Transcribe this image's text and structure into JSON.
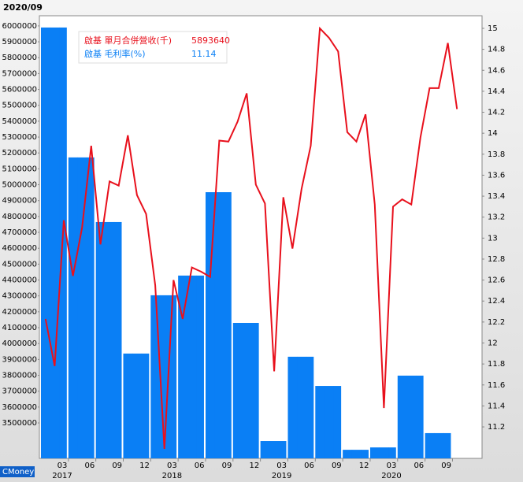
{
  "chart_data": {
    "type": "bar+line",
    "title": "2020/09",
    "footer": "CMoney",
    "categories": [
      null,
      null,
      "03",
      null,
      null,
      "06",
      null,
      null,
      "09",
      null,
      null,
      "12",
      null,
      null,
      "03",
      null,
      null,
      "06",
      null,
      null,
      "09",
      null,
      null,
      "12",
      null,
      null,
      "03",
      null,
      null,
      "06",
      null,
      null,
      "09",
      null,
      null,
      "12",
      null,
      null,
      "03",
      null,
      null,
      "06",
      null,
      null,
      "09",
      null
    ],
    "years": [
      "2017",
      "2018",
      "2019",
      "2020"
    ],
    "series": [
      {
        "name": "啟基 單月合併營收(千)",
        "legend_value": 5893640,
        "legend_color": "#e8101c",
        "color": "#0a7ff5",
        "kind": "bar",
        "values": [
          5990000,
          5990000,
          5990000,
          5172000,
          5172000,
          5172000,
          4765000,
          4765000,
          4765000,
          3937000,
          3937000,
          3937000,
          4304000,
          4304000,
          4304000,
          4428000,
          4428000,
          4428000,
          4953000,
          4953000,
          4953000,
          4130000,
          4130000,
          4130000,
          3386000,
          3386000,
          3386000,
          3917000,
          3917000,
          3917000,
          3733000,
          3733000,
          3733000,
          3331000,
          3331000,
          3331000,
          3346000,
          3346000,
          3346000,
          3798000,
          3798000,
          3798000,
          3436000,
          3436000,
          3436000,
          null
        ]
      },
      {
        "name": "啟基 毛利率(%)",
        "legend_value": 11.14,
        "legend_color": "#0a7ff5",
        "color": "#e8101c",
        "kind": "line",
        "axis": "y2",
        "values": [
          12.23,
          11.78,
          13.17,
          12.64,
          13.1,
          13.88,
          12.94,
          13.54,
          13.5,
          13.98,
          13.41,
          13.23,
          12.55,
          10.99,
          12.6,
          12.23,
          12.72,
          12.68,
          12.63,
          13.93,
          13.92,
          14.11,
          14.38,
          13.51,
          13.33,
          11.73,
          13.39,
          12.9,
          13.47,
          13.88,
          15.0,
          14.91,
          14.78,
          14.01,
          13.92,
          14.18,
          13.32,
          11.38,
          13.3,
          13.37,
          13.32,
          13.96,
          14.43,
          14.43,
          14.86,
          14.23
        ]
      }
    ],
    "ylim": [
      3277000,
      6064000
    ],
    "yticks": [
      3500000,
      3600000,
      3700000,
      3800000,
      3900000,
      4000000,
      4100000,
      4200000,
      4300000,
      4400000,
      4500000,
      4600000,
      4700000,
      4800000,
      4900000,
      5000000,
      5100000,
      5200000,
      5300000,
      5400000,
      5500000,
      5600000,
      5700000,
      5800000,
      5900000,
      6000000
    ],
    "y2lim": [
      10.9,
      15.12
    ],
    "y2ticks": [
      11.2,
      11.4,
      11.6,
      11.8,
      12,
      12.2,
      12.4,
      12.6,
      12.8,
      13,
      13.2,
      13.4,
      13.6,
      13.8,
      14,
      14.2,
      14.4,
      14.6,
      14.8,
      15
    ]
  }
}
